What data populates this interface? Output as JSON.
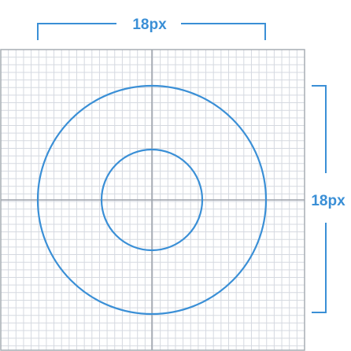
{
  "figure": {
    "width_label": "18px",
    "height_label": "18px"
  },
  "colors": {
    "accent": "#3A8FD6",
    "grid_minor": "#D5D9E0",
    "grid_major": "#9DA3AB",
    "frame": "#A7ADB4",
    "background": "#FFFFFF"
  }
}
